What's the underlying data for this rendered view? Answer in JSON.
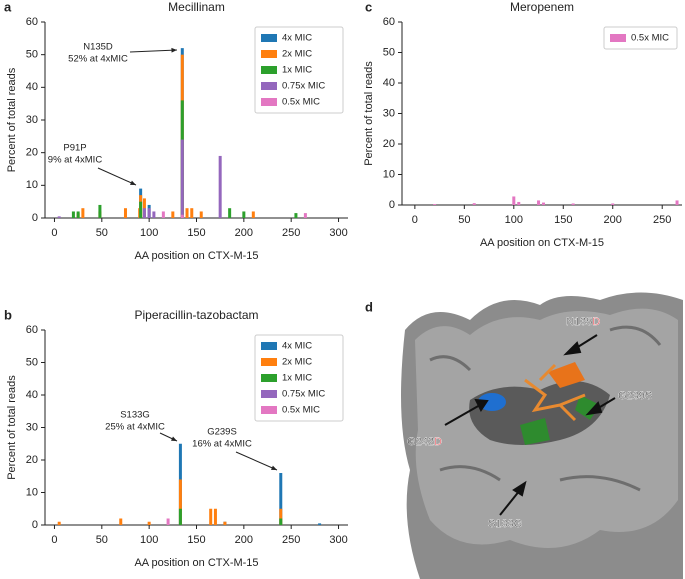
{
  "chart_data": [
    {
      "type": "bar",
      "panel": "a",
      "title": "Mecillinam",
      "xlabel": "AA position on CTX-M-15",
      "ylabel": "Percent of total reads",
      "xlim": [
        -10,
        310
      ],
      "ylim": [
        0,
        60
      ],
      "xticks": [
        0,
        50,
        100,
        150,
        200,
        250,
        300
      ],
      "yticks": [
        0,
        10,
        20,
        30,
        40,
        50,
        60
      ],
      "legend": "upper right",
      "x": [
        5,
        20,
        25,
        30,
        48,
        75,
        90,
        91,
        95,
        100,
        105,
        115,
        125,
        135,
        140,
        145,
        155,
        175,
        185,
        200,
        210,
        255,
        265
      ],
      "series": [
        {
          "name": "4x MIC",
          "color": "#1f77b4",
          "values": [
            null,
            null,
            null,
            null,
            null,
            null,
            null,
            9,
            null,
            4,
            null,
            null,
            null,
            52,
            null,
            null,
            null,
            null,
            null,
            null,
            null,
            null,
            null
          ]
        },
        {
          "name": "2x MIC",
          "color": "#ff7f0e",
          "values": [
            null,
            null,
            1.5,
            3,
            2,
            3,
            3,
            7,
            6,
            null,
            null,
            null,
            2,
            50,
            3,
            3,
            2,
            null,
            null,
            null,
            2,
            null,
            null
          ]
        },
        {
          "name": "1x MIC",
          "color": "#2ca02c",
          "values": [
            null,
            2,
            2,
            null,
            4,
            null,
            null,
            5,
            null,
            null,
            null,
            null,
            null,
            36,
            null,
            null,
            null,
            null,
            3,
            2,
            null,
            1.5,
            null
          ]
        },
        {
          "name": "0.75x MIC",
          "color": "#9467bd",
          "values": [
            0.5,
            null,
            null,
            null,
            null,
            null,
            null,
            null,
            3,
            3,
            2,
            null,
            null,
            24,
            null,
            null,
            null,
            19,
            null,
            null,
            null,
            null,
            null
          ]
        },
        {
          "name": "0.5x MIC",
          "color": "#e377c2",
          "values": [
            null,
            null,
            null,
            null,
            null,
            null,
            null,
            null,
            null,
            null,
            null,
            2,
            null,
            1,
            null,
            null,
            null,
            null,
            null,
            null,
            null,
            null,
            1.5
          ]
        }
      ],
      "annotations": [
        {
          "lines": [
            "N135D",
            "52% at 4xMIC"
          ]
        },
        {
          "lines": [
            "P91P",
            "9% at 4xMIC"
          ]
        }
      ]
    },
    {
      "type": "bar",
      "panel": "b",
      "title": "Piperacillin-tazobactam",
      "xlabel": "AA position on CTX-M-15",
      "ylabel": "Percent of total reads",
      "xlim": [
        -10,
        310
      ],
      "ylim": [
        0,
        60
      ],
      "xticks": [
        0,
        50,
        100,
        150,
        200,
        250,
        300
      ],
      "yticks": [
        0,
        10,
        20,
        30,
        40,
        50,
        60
      ],
      "legend": "upper right",
      "x": [
        5,
        70,
        100,
        120,
        133,
        165,
        170,
        180,
        239,
        280
      ],
      "series": [
        {
          "name": "4x MIC",
          "color": "#1f77b4",
          "values": [
            null,
            null,
            null,
            null,
            25,
            null,
            null,
            1,
            16,
            0.5
          ]
        },
        {
          "name": "2x MIC",
          "color": "#ff7f0e",
          "values": [
            1,
            2,
            1,
            null,
            14,
            5,
            5,
            1,
            5,
            null
          ]
        },
        {
          "name": "1x MIC",
          "color": "#2ca02c",
          "values": [
            null,
            null,
            null,
            null,
            5,
            null,
            null,
            null,
            2,
            null
          ]
        },
        {
          "name": "0.75x MIC",
          "color": "#9467bd",
          "values": [
            null,
            null,
            null,
            null,
            null,
            null,
            null,
            null,
            null,
            null
          ]
        },
        {
          "name": "0.5x MIC",
          "color": "#e377c2",
          "values": [
            null,
            null,
            null,
            2,
            null,
            null,
            null,
            null,
            null,
            null
          ]
        }
      ],
      "annotations": [
        {
          "lines": [
            "S133G",
            "25% at 4xMIC"
          ]
        },
        {
          "lines": [
            "G239S",
            "16% at 4xMIC"
          ]
        }
      ]
    },
    {
      "type": "bar",
      "panel": "c",
      "title": "Meropenem",
      "xlabel": "AA position on CTX-M-15",
      "ylabel": "Percent of total reads",
      "xlim": [
        -13,
        270
      ],
      "ylim": [
        0,
        60
      ],
      "xticks": [
        0,
        50,
        100,
        150,
        200,
        250
      ],
      "yticks": [
        0,
        10,
        20,
        30,
        40,
        50,
        60
      ],
      "legend": "upper right",
      "x": [
        20,
        60,
        100,
        105,
        125,
        130,
        160,
        200,
        265
      ],
      "series": [
        {
          "name": "0.5x MIC",
          "color": "#e377c2",
          "values": [
            0.3,
            0.6,
            2.8,
            1,
            1.5,
            0.8,
            0.5,
            0.5,
            1.5
          ]
        }
      ],
      "annotations": []
    }
  ],
  "structure_panel": {
    "panel": "d",
    "labels": [
      {
        "text": "N135",
        "suffix": "D"
      },
      {
        "text": "G239S"
      },
      {
        "text": "G242",
        "suffix": "D"
      },
      {
        "text": "S133G"
      }
    ]
  }
}
